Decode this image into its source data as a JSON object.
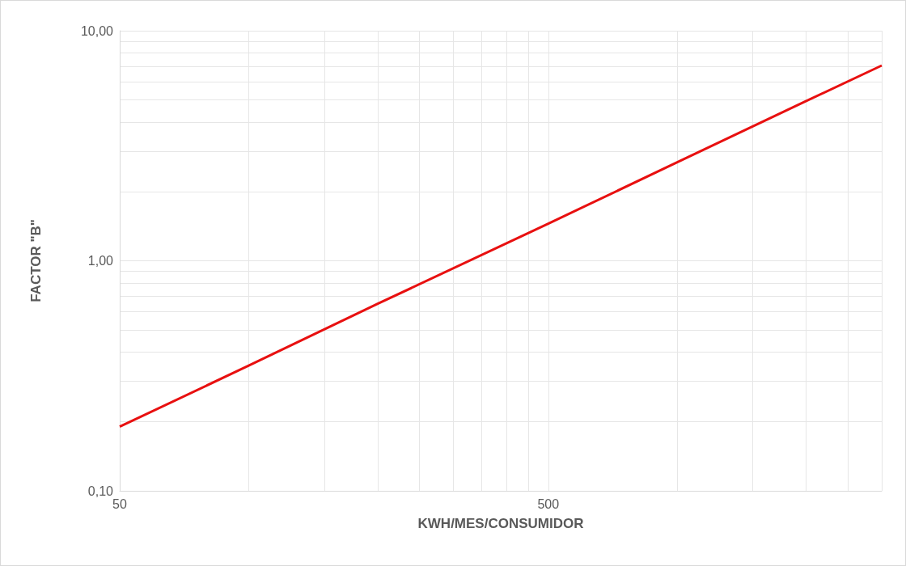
{
  "chart_data": {
    "type": "line",
    "xlabel": "KWH/MES/CONSUMIDOR",
    "ylabel": "FACTOR \"B\"",
    "log": "xy",
    "x": [
      50,
      100,
      200,
      500,
      1000,
      2000,
      3000
    ],
    "series": [
      {
        "color": "#e81010",
        "values": [
          0.19,
          0.35,
          0.65,
          1.45,
          2.68,
          4.95,
          7.06
        ]
      }
    ],
    "xlim": [
      50,
      3000
    ],
    "xticks": [
      50,
      {
        "value": 100,
        "label": null
      },
      {
        "value": 150,
        "label": null
      },
      {
        "value": 200,
        "label": null
      },
      {
        "value": 250,
        "label": null
      },
      {
        "value": 300,
        "label": null
      },
      {
        "value": 350,
        "label": null
      },
      {
        "value": 400,
        "label": null
      },
      {
        "value": 450,
        "label": null
      },
      500,
      {
        "value": 1000,
        "label": null
      },
      {
        "value": 1500,
        "label": null
      },
      {
        "value": 2000,
        "label": null
      },
      {
        "value": 2500,
        "label": null
      },
      {
        "value": 3000,
        "label": null
      }
    ],
    "ylim": [
      0.1,
      10
    ],
    "yticks": [
      {
        "value": 0.1,
        "label": "0,10"
      },
      {
        "value": 0.2,
        "label": null
      },
      {
        "value": 0.3,
        "label": null
      },
      {
        "value": 0.4,
        "label": null
      },
      {
        "value": 0.5,
        "label": null
      },
      {
        "value": 0.6,
        "label": null
      },
      {
        "value": 0.7,
        "label": null
      },
      {
        "value": 0.8,
        "label": null
      },
      {
        "value": 0.9,
        "label": null
      },
      {
        "value": 1,
        "label": "1,00"
      },
      {
        "value": 2,
        "label": null
      },
      {
        "value": 3,
        "label": null
      },
      {
        "value": 4,
        "label": null
      },
      {
        "value": 5,
        "label": null
      },
      {
        "value": 6,
        "label": null
      },
      {
        "value": 7,
        "label": null
      },
      {
        "value": 8,
        "label": null
      },
      {
        "value": 9,
        "label": null
      },
      {
        "value": 10,
        "label": "10,00"
      }
    ],
    "grid": true,
    "marker": "none",
    "line_style": "solid"
  }
}
